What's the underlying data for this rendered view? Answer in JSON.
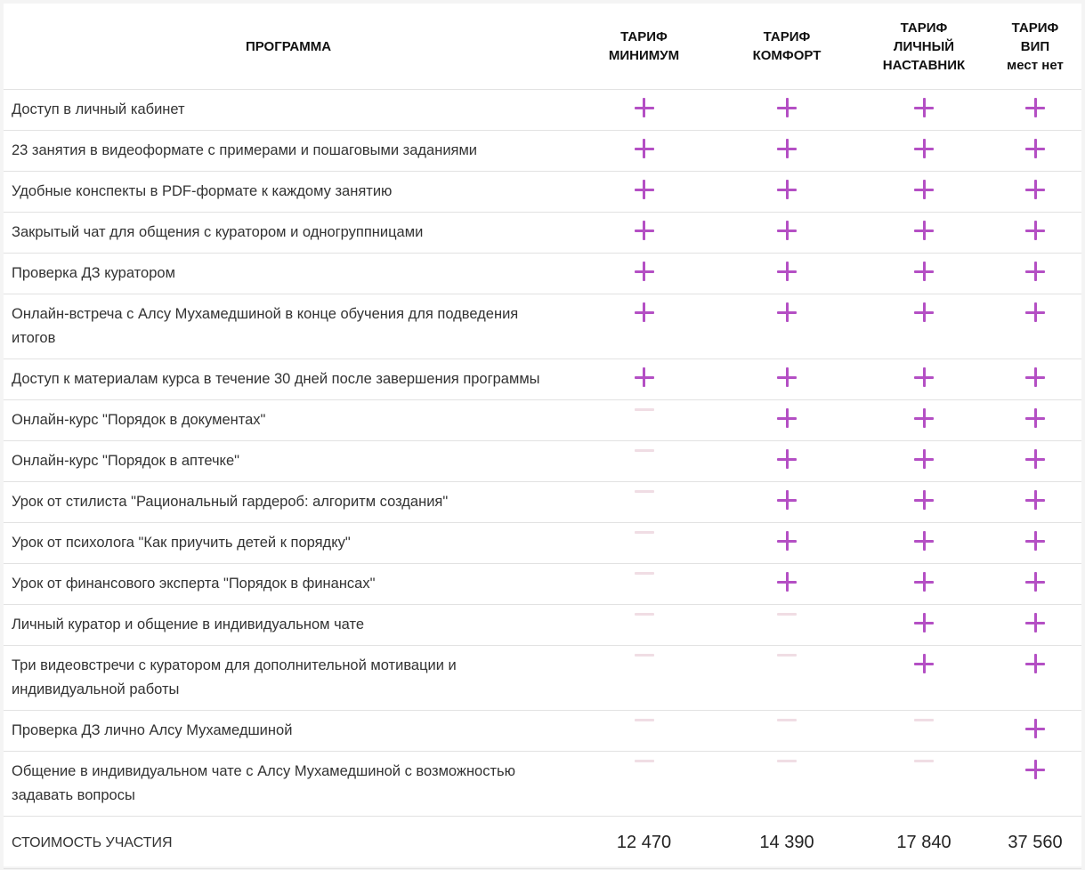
{
  "headers": {
    "program": "ПРОГРАММА",
    "minimum": [
      "ТАРИФ",
      "МИНИМУМ"
    ],
    "comfort": [
      "ТАРИФ",
      "КОМФОРТ"
    ],
    "personal": [
      "ТАРИФ",
      "ЛИЧНЫЙ",
      "НАСТАВНИК"
    ],
    "vip": [
      "ТАРИФ",
      "ВИП",
      "мест нет"
    ]
  },
  "rows": [
    {
      "label": "Доступ в личный кабинет",
      "marks": [
        "plus-icon",
        "plus-icon",
        "plus-icon",
        "plus-icon"
      ]
    },
    {
      "label": "23 занятия в видеоформате с примерами и пошаговыми заданиями",
      "marks": [
        "plus-icon",
        "plus-icon",
        "plus-icon",
        "plus-icon"
      ]
    },
    {
      "label": "Удобные конспекты в PDF-формате к каждому занятию",
      "marks": [
        "plus-icon",
        "plus-icon",
        "plus-icon",
        "plus-icon"
      ]
    },
    {
      "label": "Закрытый чат для общения с куратором и одногруппницами",
      "marks": [
        "plus-icon",
        "plus-icon",
        "plus-icon",
        "plus-icon"
      ]
    },
    {
      "label": "Проверка ДЗ куратором",
      "marks": [
        "plus-icon",
        "plus-icon",
        "plus-icon",
        "plus-icon"
      ]
    },
    {
      "label": "Онлайн-встреча с Алсу Мухамедшиной в конце обучения для подведения итогов",
      "marks": [
        "plus-icon",
        "plus-icon",
        "plus-icon",
        "plus-icon"
      ]
    },
    {
      "label": "Доступ к материалам курса в течение 30 дней после завершения программы",
      "marks": [
        "plus-icon",
        "plus-icon",
        "plus-icon",
        "plus-icon"
      ]
    },
    {
      "label": "Онлайн-курс \"Порядок в документах\"",
      "marks": [
        "dash-icon",
        "plus-icon",
        "plus-icon",
        "plus-icon"
      ]
    },
    {
      "label": "Онлайн-курс \"Порядок в аптечке\"",
      "marks": [
        "dash-icon",
        "plus-icon",
        "plus-icon",
        "plus-icon"
      ]
    },
    {
      "label": "Урок от стилиста \"Рациональный гардероб: алгоритм создания\"",
      "marks": [
        "dash-icon",
        "plus-icon",
        "plus-icon",
        "plus-icon"
      ]
    },
    {
      "label": "Урок от психолога \"Как приучить детей к порядку\"",
      "marks": [
        "dash-icon",
        "plus-icon",
        "plus-icon",
        "plus-icon"
      ]
    },
    {
      "label": "Урок от финансового эксперта \"Порядок в финансах\"",
      "marks": [
        "dash-icon",
        "plus-icon",
        "plus-icon",
        "plus-icon"
      ]
    },
    {
      "label": "Личный куратор и общение в индивидуальном чате",
      "marks": [
        "dash-icon",
        "dash-icon",
        "plus-icon",
        "plus-icon"
      ]
    },
    {
      "label": "Три видеовстречи с куратором для дополнительной мотивации и индивидуальной работы",
      "marks": [
        "dash-icon",
        "dash-icon",
        "plus-icon",
        "plus-icon"
      ]
    },
    {
      "label": "Проверка ДЗ лично Алсу Мухамедшиной",
      "marks": [
        "dash-icon",
        "dash-icon",
        "dash-icon",
        "plus-icon"
      ]
    },
    {
      "label": "Общение в индивидуальном чате с Алсу Мухамедшиной с возможностью задавать вопросы",
      "marks": [
        "dash-icon",
        "dash-icon",
        "dash-icon",
        "plus-icon"
      ]
    }
  ],
  "total": {
    "label": "СТОИМОСТЬ УЧАСТИЯ",
    "prices": [
      "12 470",
      "14 390",
      "17 840",
      "37 560"
    ]
  },
  "colors": {
    "plus": "#b44fc4",
    "dash": "#f0dde4",
    "border": "#e2e2e2"
  }
}
